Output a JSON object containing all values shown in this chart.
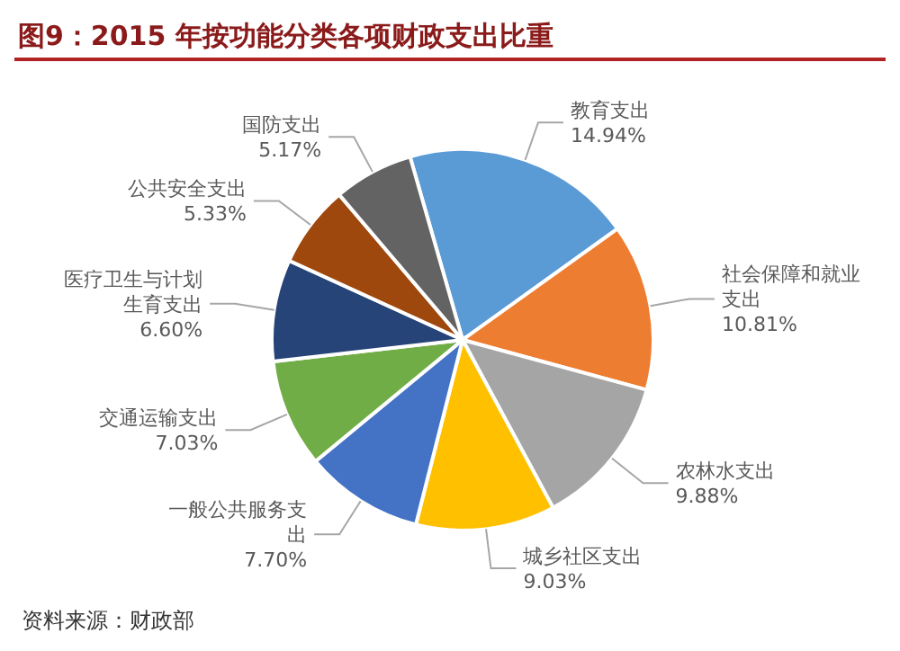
{
  "chart_data": {
    "type": "pie",
    "title": "图9：2015 年按功能分类各项财政支出比重",
    "categories": [
      "教育支出",
      "社会保障和就业支出",
      "农林水支出",
      "城乡社区支出",
      "一般公共服务支出",
      "交通运输支出",
      "医疗卫生与计划生育支出",
      "公共安全支出",
      "国防支出"
    ],
    "values": [
      14.94,
      10.81,
      9.88,
      9.03,
      7.7,
      7.03,
      6.6,
      5.33,
      5.17
    ],
    "value_labels": [
      "14.94%",
      "10.81%",
      "9.88%",
      "9.03%",
      "7.70%",
      "7.03%",
      "6.60%",
      "5.33%",
      "5.17%"
    ],
    "colors": [
      "#5b9bd5",
      "#ed7d31",
      "#a5a5a5",
      "#ffc000",
      "#4472c4",
      "#70ad47",
      "#264478",
      "#9e480e",
      "#636363"
    ],
    "annotations": [
      "资料来源：财政部"
    ]
  }
}
